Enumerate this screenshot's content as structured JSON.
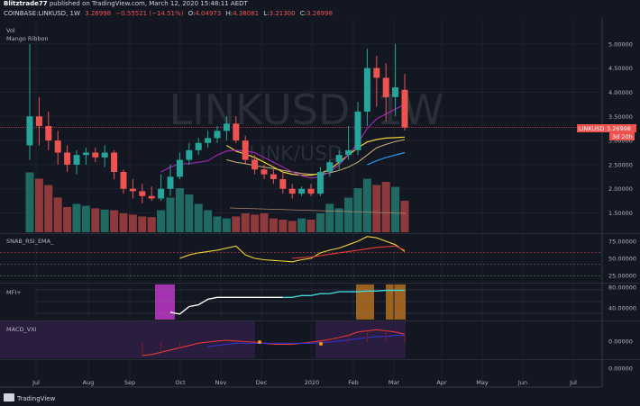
{
  "header": {
    "author": "Blitztrade77",
    "published": "published on TradingView.com, March 12, 2020 15:48:11 AEDT",
    "symbol_line": "COINBASE:LINKUSD, 1W",
    "price": "3.26998",
    "change": "−0.55521 (−14.51%)",
    "o": "4.04973",
    "h": "4.38081",
    "l": "3.21300",
    "c": "3.26998",
    "o_label": "O:",
    "h_label": "H:",
    "l_label": "L:",
    "c_label": "C:"
  },
  "indicators": {
    "vol": "Vol",
    "ribbon": "Mango Ribbon",
    "rsi": "SNAB_RSI_EMA_",
    "mfi": "MFI+",
    "macd": "MACD_VXI"
  },
  "watermark": {
    "main": "LINKUSD, 1W",
    "sub": "LINK/USD"
  },
  "price_tag": {
    "label": "LINKUSD",
    "value": "3.26998",
    "timer": "3d 20h"
  },
  "footer": {
    "brand": "TradingView"
  },
  "colors": {
    "bg": "#131722",
    "up": "#26a69a",
    "down": "#ef5350",
    "vol_up": "#1f6b63",
    "vol_down": "#8e3a3c",
    "yellow": "#f0d232",
    "purple": "#9c27b0",
    "blue": "#2196f3",
    "white": "#ffffff",
    "cyan": "#3fd6d6",
    "red": "#e53935",
    "macd_blue": "#3333cc",
    "orange": "#f7931a",
    "magenta": "#c038c8"
  },
  "chart_data": {
    "type": "candlestick",
    "x_ticks": [
      "Jul",
      "Aug",
      "Sep",
      "Oct",
      "Nov",
      "Dec",
      "2020",
      "Feb",
      "Mar",
      "Apr",
      "May",
      "Jun",
      "Jul"
    ],
    "price_ticks": [
      "5.00000",
      "4.50000",
      "4.00000",
      "3.50000",
      "3.00000",
      "2.50000",
      "2.00000",
      "1.50000"
    ],
    "rsi_ticks": [
      "75.00000",
      "50.00000",
      "25.00000"
    ],
    "mfi_ticks": [
      "80.00000",
      "40.00000"
    ],
    "macd_ticks": [
      "0.00000",
      "0.00000"
    ],
    "ylim_price": [
      1.1,
      5.5
    ],
    "candles": [
      {
        "o": 2.9,
        "h": 5.0,
        "l": 2.6,
        "c": 3.5
      },
      {
        "o": 3.5,
        "h": 3.9,
        "l": 2.9,
        "c": 3.3
      },
      {
        "o": 3.3,
        "h": 3.6,
        "l": 2.8,
        "c": 3.0
      },
      {
        "o": 3.0,
        "h": 3.2,
        "l": 2.5,
        "c": 2.75
      },
      {
        "o": 2.75,
        "h": 2.9,
        "l": 2.35,
        "c": 2.5
      },
      {
        "o": 2.5,
        "h": 2.8,
        "l": 2.3,
        "c": 2.7
      },
      {
        "o": 2.7,
        "h": 2.85,
        "l": 2.5,
        "c": 2.75
      },
      {
        "o": 2.75,
        "h": 2.85,
        "l": 2.55,
        "c": 2.65
      },
      {
        "o": 2.65,
        "h": 2.9,
        "l": 2.45,
        "c": 2.75
      },
      {
        "o": 2.75,
        "h": 2.8,
        "l": 2.2,
        "c": 2.35
      },
      {
        "o": 2.35,
        "h": 2.4,
        "l": 1.9,
        "c": 2.0
      },
      {
        "o": 2.0,
        "h": 2.2,
        "l": 1.8,
        "c": 1.95
      },
      {
        "o": 1.95,
        "h": 2.1,
        "l": 1.7,
        "c": 1.85
      },
      {
        "o": 1.85,
        "h": 2.05,
        "l": 1.75,
        "c": 1.8
      },
      {
        "o": 1.8,
        "h": 2.3,
        "l": 1.75,
        "c": 2.0
      },
      {
        "o": 2.0,
        "h": 2.5,
        "l": 1.85,
        "c": 2.25
      },
      {
        "o": 2.25,
        "h": 2.75,
        "l": 2.2,
        "c": 2.6
      },
      {
        "o": 2.6,
        "h": 2.95,
        "l": 2.5,
        "c": 2.8
      },
      {
        "o": 2.8,
        "h": 3.05,
        "l": 2.7,
        "c": 2.95
      },
      {
        "o": 2.95,
        "h": 3.2,
        "l": 2.85,
        "c": 3.05
      },
      {
        "o": 3.05,
        "h": 3.3,
        "l": 2.95,
        "c": 3.2
      },
      {
        "o": 3.2,
        "h": 3.5,
        "l": 3.0,
        "c": 3.35
      },
      {
        "o": 3.35,
        "h": 3.5,
        "l": 2.95,
        "c": 3.0
      },
      {
        "o": 3.0,
        "h": 3.1,
        "l": 2.5,
        "c": 2.6
      },
      {
        "o": 2.6,
        "h": 2.7,
        "l": 2.3,
        "c": 2.4
      },
      {
        "o": 2.4,
        "h": 2.5,
        "l": 2.2,
        "c": 2.3
      },
      {
        "o": 2.3,
        "h": 2.4,
        "l": 2.1,
        "c": 2.2
      },
      {
        "o": 2.2,
        "h": 2.35,
        "l": 1.9,
        "c": 2.0
      },
      {
        "o": 2.0,
        "h": 2.1,
        "l": 1.8,
        "c": 1.9
      },
      {
        "o": 1.9,
        "h": 2.05,
        "l": 1.85,
        "c": 2.0
      },
      {
        "o": 2.0,
        "h": 2.1,
        "l": 1.85,
        "c": 1.9
      },
      {
        "o": 1.9,
        "h": 2.45,
        "l": 1.85,
        "c": 2.35
      },
      {
        "o": 2.35,
        "h": 2.6,
        "l": 2.25,
        "c": 2.55
      },
      {
        "o": 2.55,
        "h": 2.8,
        "l": 2.4,
        "c": 2.7
      },
      {
        "o": 2.7,
        "h": 3.3,
        "l": 2.6,
        "c": 2.8
      },
      {
        "o": 2.8,
        "h": 3.8,
        "l": 2.7,
        "c": 3.6
      },
      {
        "o": 3.6,
        "h": 4.9,
        "l": 3.3,
        "c": 4.5
      },
      {
        "o": 4.5,
        "h": 4.75,
        "l": 3.7,
        "c": 4.3
      },
      {
        "o": 4.3,
        "h": 4.6,
        "l": 3.4,
        "c": 3.9
      },
      {
        "o": 3.9,
        "h": 5.0,
        "l": 3.5,
        "c": 4.1
      },
      {
        "o": 4.05,
        "h": 4.38,
        "l": 3.21,
        "c": 3.27
      }
    ],
    "volume_relative": [
      0.95,
      0.85,
      0.75,
      0.55,
      0.4,
      0.45,
      0.42,
      0.38,
      0.36,
      0.35,
      0.3,
      0.28,
      0.25,
      0.24,
      0.35,
      0.55,
      0.7,
      0.6,
      0.45,
      0.35,
      0.25,
      0.22,
      0.25,
      0.3,
      0.28,
      0.3,
      0.22,
      0.2,
      0.18,
      0.22,
      0.2,
      0.3,
      0.45,
      0.38,
      0.55,
      0.7,
      0.85,
      0.75,
      0.8,
      0.72,
      0.5
    ],
    "ribbon_yellow": [
      null,
      null,
      null,
      null,
      null,
      null,
      null,
      null,
      null,
      null,
      null,
      null,
      null,
      null,
      null,
      null,
      null,
      null,
      null,
      null,
      null,
      2.9,
      2.78,
      2.72,
      2.65,
      2.55,
      2.45,
      2.35,
      2.3,
      2.28,
      2.28,
      2.32,
      2.4,
      2.55,
      2.7,
      2.85,
      2.97,
      3.02,
      3.05,
      3.06,
      3.07
    ],
    "ribbon_purple": [
      null,
      null,
      null,
      null,
      null,
      null,
      null,
      null,
      null,
      null,
      null,
      null,
      null,
      null,
      2.35,
      2.45,
      2.52,
      2.52,
      2.55,
      2.58,
      2.7,
      2.78,
      2.8,
      2.78,
      2.75,
      2.65,
      2.55,
      2.45,
      2.35,
      2.27,
      2.22,
      2.25,
      2.35,
      2.5,
      2.7,
      2.95,
      3.25,
      3.45,
      3.55,
      3.65,
      3.75
    ],
    "ribbon_blue": [
      null,
      null,
      null,
      null,
      null,
      null,
      null,
      null,
      null,
      null,
      null,
      null,
      null,
      null,
      null,
      null,
      null,
      null,
      null,
      null,
      null,
      null,
      null,
      null,
      null,
      null,
      null,
      null,
      null,
      null,
      null,
      null,
      null,
      null,
      null,
      null,
      2.5,
      2.58,
      2.65,
      2.7,
      2.75
    ],
    "ribbon_yellow_band": [
      null,
      null,
      null,
      null,
      null,
      null,
      null,
      null,
      null,
      null,
      null,
      null,
      null,
      null,
      null,
      null,
      null,
      null,
      null,
      null,
      null,
      2.6,
      2.55,
      2.52,
      2.48,
      2.45,
      2.42,
      2.38,
      2.35,
      2.32,
      2.3,
      2.3,
      2.33,
      2.38,
      2.45,
      2.55,
      2.7,
      2.85,
      2.92,
      2.98,
      3.02
    ],
    "rsi_yellow": [
      null,
      null,
      null,
      null,
      null,
      null,
      null,
      null,
      null,
      null,
      null,
      null,
      null,
      null,
      null,
      null,
      50,
      55,
      58,
      60,
      62,
      65,
      68,
      55,
      50,
      48,
      47,
      46,
      45,
      48,
      50,
      58,
      62,
      65,
      70,
      75,
      82,
      80,
      75,
      70,
      60
    ],
    "rsi_red": [
      null,
      null,
      null,
      null,
      null,
      null,
      null,
      null,
      null,
      null,
      null,
      null,
      null,
      null,
      null,
      null,
      null,
      null,
      null,
      null,
      null,
      null,
      null,
      null,
      null,
      null,
      null,
      null,
      50,
      51,
      52,
      54,
      56,
      58,
      60,
      62,
      64,
      66,
      67,
      68,
      62
    ],
    "mfi_white": [
      null,
      null,
      null,
      null,
      null,
      null,
      null,
      null,
      null,
      null,
      null,
      null,
      null,
      null,
      null,
      15,
      10,
      30,
      35,
      50,
      55,
      55,
      55,
      55,
      55,
      55,
      55,
      55
    ],
    "mfi_cyan": [
      null,
      null,
      null,
      null,
      null,
      null,
      null,
      null,
      null,
      null,
      null,
      null,
      null,
      null,
      null,
      null,
      null,
      null,
      null,
      null,
      null,
      null,
      null,
      null,
      null,
      null,
      null,
      55,
      55,
      60,
      60,
      65,
      65,
      70,
      70,
      70,
      72,
      72,
      74,
      74,
      74
    ],
    "macd_red": [
      null,
      null,
      null,
      null,
      null,
      null,
      null,
      null,
      null,
      null,
      null,
      null,
      -0.6,
      -0.55,
      -0.45,
      -0.35,
      -0.25,
      -0.15,
      -0.05,
      0.0,
      0.05,
      0.08,
      0.05,
      0.02,
      0.0,
      -0.05,
      -0.1,
      -0.1,
      -0.1,
      -0.05,
      0.0,
      0.05,
      0.12,
      0.2,
      0.3,
      0.45,
      0.5,
      0.55,
      0.5,
      0.45,
      0.35
    ],
    "macd_blue": [
      null,
      null,
      null,
      null,
      null,
      null,
      null,
      null,
      null,
      null,
      null,
      null,
      null,
      null,
      null,
      null,
      null,
      null,
      null,
      -0.2,
      -0.15,
      -0.1,
      -0.05,
      -0.05,
      -0.05,
      -0.05,
      -0.05,
      -0.05,
      -0.05,
      -0.05,
      -0.05,
      -0.02,
      0.0,
      0.05,
      0.1,
      0.15,
      0.2,
      0.25,
      0.25,
      0.3,
      0.3
    ]
  }
}
